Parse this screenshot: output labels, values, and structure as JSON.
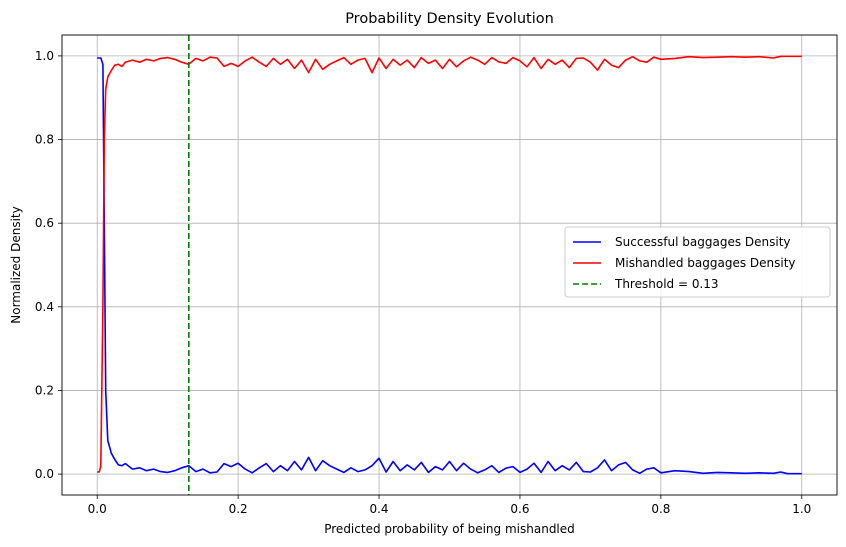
{
  "chart_data": {
    "type": "line",
    "title": "Probability Density Evolution",
    "xlabel": "Predicted probability of being mishandled",
    "ylabel": "Normalized Density",
    "xlim": [
      -0.05,
      1.05
    ],
    "ylim": [
      -0.05,
      1.05
    ],
    "xticks": [
      0.0,
      0.2,
      0.4,
      0.6,
      0.8,
      1.0
    ],
    "xtick_labels": [
      "0.0",
      "0.2",
      "0.4",
      "0.6",
      "0.8",
      "1.0"
    ],
    "yticks": [
      0.0,
      0.2,
      0.4,
      0.6,
      0.8,
      1.0
    ],
    "ytick_labels": [
      "0.0",
      "0.2",
      "0.4",
      "0.6",
      "0.8",
      "1.0"
    ],
    "grid": true,
    "legend_position": "center-right",
    "series": [
      {
        "name": "Successful baggages Density",
        "color": "#0000ff",
        "style": "solid",
        "x": [
          0.0,
          0.005,
          0.008,
          0.01,
          0.012,
          0.015,
          0.02,
          0.025,
          0.03,
          0.035,
          0.04,
          0.05,
          0.06,
          0.07,
          0.08,
          0.09,
          0.1,
          0.11,
          0.12,
          0.13,
          0.14,
          0.15,
          0.16,
          0.17,
          0.18,
          0.19,
          0.2,
          0.21,
          0.22,
          0.23,
          0.24,
          0.25,
          0.26,
          0.27,
          0.28,
          0.29,
          0.3,
          0.31,
          0.32,
          0.33,
          0.34,
          0.35,
          0.36,
          0.37,
          0.38,
          0.39,
          0.4,
          0.41,
          0.42,
          0.43,
          0.44,
          0.45,
          0.46,
          0.47,
          0.48,
          0.49,
          0.5,
          0.51,
          0.52,
          0.53,
          0.54,
          0.55,
          0.56,
          0.57,
          0.58,
          0.59,
          0.6,
          0.61,
          0.62,
          0.63,
          0.64,
          0.65,
          0.66,
          0.67,
          0.68,
          0.69,
          0.7,
          0.71,
          0.72,
          0.73,
          0.74,
          0.75,
          0.76,
          0.77,
          0.78,
          0.79,
          0.8,
          0.82,
          0.84,
          0.86,
          0.88,
          0.9,
          0.92,
          0.94,
          0.96,
          0.97,
          0.98,
          1.0
        ],
        "y": [
          0.995,
          0.995,
          0.98,
          0.6,
          0.2,
          0.08,
          0.05,
          0.035,
          0.022,
          0.02,
          0.025,
          0.012,
          0.015,
          0.008,
          0.012,
          0.006,
          0.004,
          0.008,
          0.015,
          0.02,
          0.006,
          0.012,
          0.003,
          0.005,
          0.025,
          0.018,
          0.026,
          0.012,
          0.003,
          0.015,
          0.025,
          0.006,
          0.02,
          0.008,
          0.03,
          0.01,
          0.04,
          0.008,
          0.032,
          0.02,
          0.012,
          0.004,
          0.015,
          0.006,
          0.01,
          0.02,
          0.038,
          0.005,
          0.03,
          0.008,
          0.022,
          0.01,
          0.028,
          0.004,
          0.018,
          0.01,
          0.03,
          0.008,
          0.026,
          0.012,
          0.003,
          0.01,
          0.02,
          0.004,
          0.014,
          0.018,
          0.004,
          0.012,
          0.026,
          0.004,
          0.03,
          0.008,
          0.02,
          0.01,
          0.028,
          0.006,
          0.005,
          0.015,
          0.034,
          0.008,
          0.022,
          0.028,
          0.01,
          0.002,
          0.012,
          0.015,
          0.003,
          0.008,
          0.006,
          0.002,
          0.004,
          0.003,
          0.002,
          0.003,
          0.002,
          0.005,
          0.001,
          0.001
        ]
      },
      {
        "name": "Mishandled baggages Density",
        "color": "#ff0000",
        "style": "solid",
        "x": [
          0.0,
          0.003,
          0.005,
          0.008,
          0.01,
          0.012,
          0.015,
          0.02,
          0.025,
          0.03,
          0.035,
          0.04,
          0.05,
          0.06,
          0.07,
          0.08,
          0.09,
          0.1,
          0.11,
          0.12,
          0.13,
          0.14,
          0.15,
          0.16,
          0.17,
          0.18,
          0.19,
          0.2,
          0.21,
          0.22,
          0.23,
          0.24,
          0.25,
          0.26,
          0.27,
          0.28,
          0.29,
          0.3,
          0.31,
          0.32,
          0.33,
          0.34,
          0.35,
          0.36,
          0.37,
          0.38,
          0.39,
          0.4,
          0.41,
          0.42,
          0.43,
          0.44,
          0.45,
          0.46,
          0.47,
          0.48,
          0.49,
          0.5,
          0.51,
          0.52,
          0.53,
          0.54,
          0.55,
          0.56,
          0.57,
          0.58,
          0.59,
          0.6,
          0.61,
          0.62,
          0.63,
          0.64,
          0.65,
          0.66,
          0.67,
          0.68,
          0.69,
          0.7,
          0.71,
          0.72,
          0.73,
          0.74,
          0.75,
          0.76,
          0.77,
          0.78,
          0.79,
          0.8,
          0.82,
          0.84,
          0.86,
          0.88,
          0.9,
          0.92,
          0.94,
          0.96,
          0.97,
          0.98,
          1.0
        ],
        "y": [
          0.005,
          0.005,
          0.02,
          0.4,
          0.8,
          0.92,
          0.95,
          0.965,
          0.978,
          0.98,
          0.975,
          0.985,
          0.99,
          0.985,
          0.992,
          0.988,
          0.994,
          0.996,
          0.992,
          0.985,
          0.98,
          0.994,
          0.988,
          0.997,
          0.995,
          0.975,
          0.982,
          0.975,
          0.988,
          0.997,
          0.985,
          0.975,
          0.994,
          0.98,
          0.992,
          0.97,
          0.99,
          0.96,
          0.992,
          0.968,
          0.98,
          0.988,
          0.996,
          0.98,
          0.99,
          0.994,
          0.96,
          0.995,
          0.97,
          0.992,
          0.978,
          0.99,
          0.972,
          0.996,
          0.982,
          0.99,
          0.97,
          0.992,
          0.974,
          0.988,
          0.997,
          0.99,
          0.98,
          0.996,
          0.986,
          0.982,
          0.996,
          0.988,
          0.974,
          0.996,
          0.97,
          0.992,
          0.98,
          0.99,
          0.972,
          0.994,
          0.995,
          0.985,
          0.966,
          0.992,
          0.978,
          0.972,
          0.99,
          0.998,
          0.988,
          0.985,
          0.997,
          0.992,
          0.994,
          0.998,
          0.996,
          0.997,
          0.998,
          0.997,
          0.998,
          0.995,
          0.999,
          0.999,
          0.999
        ]
      },
      {
        "name": "Threshold = 0.13",
        "color": "#008000",
        "style": "dashed",
        "vline_x": 0.13
      }
    ]
  }
}
